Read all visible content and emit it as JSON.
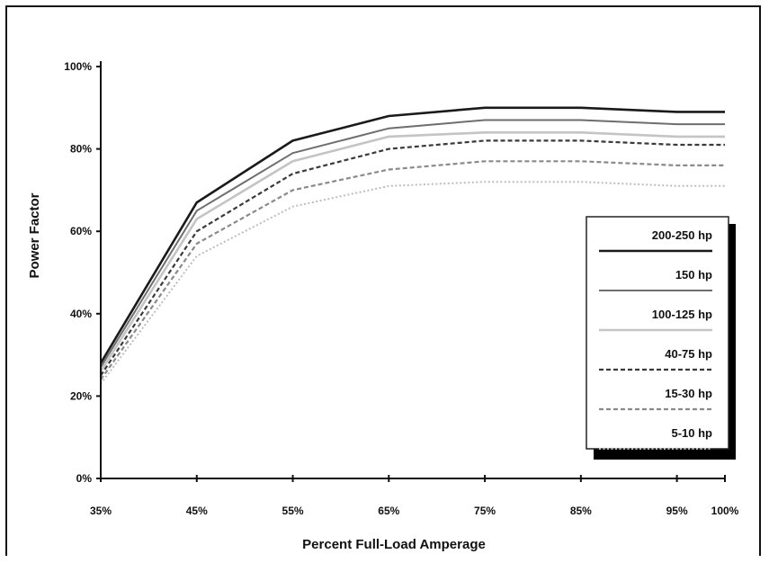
{
  "chart_data": {
    "type": "line",
    "xlabel": "Percent Full-Load Amperage",
    "ylabel": "Power Factor",
    "categories": [
      "35%",
      "45%",
      "55%",
      "65%",
      "75%",
      "85%",
      "95%",
      "100%"
    ],
    "x": [
      35,
      45,
      55,
      65,
      75,
      85,
      95,
      100
    ],
    "xlim": [
      35,
      100
    ],
    "ylim": [
      0,
      100
    ],
    "yticks": [
      0,
      20,
      40,
      60,
      80,
      100
    ],
    "ytick_labels": [
      "0%",
      "20%",
      "40%",
      "60%",
      "80%",
      "100%"
    ],
    "grid": false,
    "legend_placement": "right",
    "series": [
      {
        "name": "200-250 hp",
        "values": [
          28,
          67,
          82,
          88,
          90,
          90,
          89,
          89
        ],
        "color": "#1a1a1a",
        "dash": "solid",
        "width": 2.6
      },
      {
        "name": "150 hp",
        "values": [
          27,
          65,
          79,
          85,
          87,
          87,
          86,
          86
        ],
        "color": "#6e6e6e",
        "dash": "solid",
        "width": 2.0
      },
      {
        "name": "100-125 hp",
        "values": [
          26,
          63,
          77,
          83,
          84,
          84,
          83,
          83
        ],
        "color": "#c4c4c4",
        "dash": "solid",
        "width": 2.6
      },
      {
        "name": "40-75 hp",
        "values": [
          25,
          60,
          74,
          80,
          82,
          82,
          81,
          81
        ],
        "color": "#3a3a3a",
        "dash": "dashed",
        "width": 2.2
      },
      {
        "name": "15-30 hp",
        "values": [
          24,
          57,
          70,
          75,
          77,
          77,
          76,
          76
        ],
        "color": "#8a8a8a",
        "dash": "dashed",
        "width": 2.2
      },
      {
        "name": "5-10 hp",
        "values": [
          23,
          54,
          66,
          71,
          72,
          72,
          71,
          71
        ],
        "color": "#bdbdbd",
        "dash": "dotted",
        "width": 2.0
      }
    ]
  }
}
